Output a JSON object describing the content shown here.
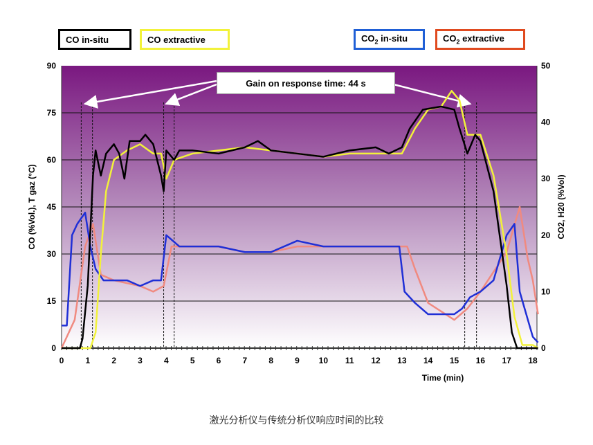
{
  "chart_data": {
    "type": "line",
    "xlabel": "Time (min)",
    "ylabel": "CO (%Vol.), T gaz (°C)",
    "y2label": "CO2, H20 (%Vol)",
    "xlim": [
      0,
      18.2
    ],
    "ylim": [
      0,
      90
    ],
    "y2lim": [
      0,
      50
    ],
    "xticks": [
      "0",
      "1",
      "2",
      "3",
      "4",
      "5",
      "6",
      "7",
      "8",
      "9",
      "10",
      "11",
      "12",
      "13",
      "14",
      "15",
      "16",
      "17",
      "18"
    ],
    "yticks": [
      "0",
      "15",
      "30",
      "45",
      "60",
      "75",
      "90"
    ],
    "y2ticks": [
      "0",
      "10",
      "20",
      "30",
      "40",
      "50"
    ],
    "grid": true,
    "legend_position": "top",
    "annotation": "Gain on response time: 44 s",
    "dashed_markers_min": [
      0.75,
      1.18,
      3.9,
      4.3,
      15.4,
      15.85
    ],
    "series": [
      {
        "name": "CO in-situ",
        "legend_label": "CO in-situ",
        "color": "#000000",
        "axis": "left",
        "x": [
          0,
          0.7,
          0.8,
          1.0,
          1.2,
          1.3,
          1.5,
          1.7,
          2,
          2.2,
          2.4,
          2.6,
          3,
          3.2,
          3.5,
          3.8,
          3.9,
          4.0,
          4.3,
          4.5,
          5,
          6,
          7,
          7.5,
          8,
          9,
          10,
          11,
          12,
          12.5,
          13,
          13.3,
          13.8,
          14.5,
          15,
          15.2,
          15.5,
          15.8,
          16,
          16.5,
          17,
          17.2,
          17.4,
          18.2
        ],
        "y": [
          0,
          0,
          3,
          20,
          55,
          63,
          55,
          62,
          65,
          62,
          54,
          66,
          66,
          68,
          65,
          55,
          50,
          63,
          60,
          63,
          63,
          62,
          64,
          66,
          63,
          62,
          61,
          63,
          64,
          62,
          64,
          70,
          76,
          77,
          76,
          70,
          62,
          68,
          66,
          50,
          20,
          5,
          0,
          0
        ]
      },
      {
        "name": "CO extractive",
        "legend_label": "CO extractive",
        "color": "#f2f23a",
        "axis": "left",
        "x": [
          0,
          1.1,
          1.3,
          1.5,
          1.7,
          2,
          2.5,
          3,
          3.5,
          3.8,
          4.0,
          4.3,
          5,
          6,
          7,
          8,
          9,
          10,
          11,
          12,
          13,
          13.5,
          14,
          14.5,
          14.9,
          15.2,
          15.5,
          16,
          16.5,
          17,
          17.3,
          17.6,
          18,
          18.2
        ],
        "y": [
          0,
          0,
          5,
          30,
          50,
          60,
          63,
          65,
          62,
          62,
          54,
          60,
          62,
          63,
          64,
          63,
          62,
          61,
          62,
          62,
          62,
          70,
          76,
          77,
          82,
          79,
          68,
          68,
          55,
          30,
          10,
          1,
          1,
          0
        ]
      },
      {
        "name": "CO2 in-situ",
        "legend_label": "CO2 in-situ",
        "color": "#1f2fd6",
        "axis": "right",
        "x": [
          0,
          0.2,
          0.4,
          0.6,
          0.9,
          1.1,
          1.3,
          1.6,
          2,
          2.5,
          3,
          3.5,
          3.8,
          4.0,
          4.5,
          5,
          6,
          7,
          8,
          9,
          10,
          11,
          12,
          12.9,
          13.1,
          13.5,
          14,
          14.5,
          15,
          15.3,
          15.6,
          16,
          16.5,
          17,
          17.3,
          17.5,
          18,
          18.2
        ],
        "y": [
          4,
          4,
          20,
          22,
          24,
          18,
          14,
          12,
          12,
          12,
          11,
          12,
          12,
          20,
          18,
          18,
          18,
          17,
          17,
          19,
          18,
          18,
          18,
          18,
          10,
          8,
          6,
          6,
          6,
          7,
          9,
          10,
          12,
          20,
          22,
          10,
          2,
          1
        ]
      },
      {
        "name": "CO2 extractive",
        "legend_label": "CO2 extractive",
        "color": "#f08a80",
        "axis": "right",
        "x": [
          0,
          0.5,
          0.9,
          1.2,
          1.5,
          2,
          3,
          3.5,
          3.9,
          4.2,
          5,
          6,
          7,
          8,
          9,
          10,
          11,
          12,
          13.2,
          13.5,
          14,
          15,
          15.5,
          16,
          17,
          17.5,
          17.8,
          18,
          18.2
        ],
        "y": [
          0,
          5,
          18,
          22,
          13,
          12,
          11,
          10,
          11,
          18,
          18,
          18,
          17,
          17,
          18,
          18,
          18,
          18,
          18,
          14,
          8,
          5,
          7,
          10,
          17,
          25,
          16,
          12,
          6
        ]
      }
    ]
  },
  "legend": {
    "co_insitu": "CO in-situ",
    "co_extractive": "CO extractive",
    "co2_insitu_pre": "CO",
    "co2_insitu_sub": "2",
    "co2_insitu_post": " in-situ",
    "co2_extractive_pre": "CO",
    "co2_extractive_sub": "2",
    "co2_extractive_post": " extractive"
  },
  "caption": "激光分析仪与传统分析仪响应时间的比较"
}
